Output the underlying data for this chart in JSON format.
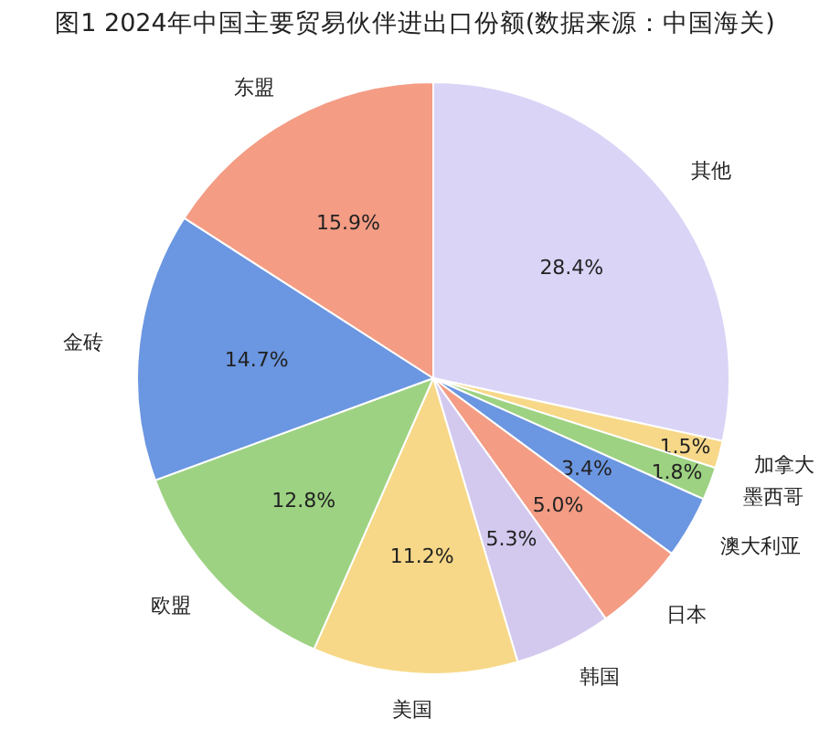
{
  "chart_data": {
    "type": "pie",
    "title": "图1 2024年中国主要贸易伙伴进出口份额(数据来源：中国海关)",
    "categories": [
      "其他",
      "加拿大",
      "墨西哥",
      "澳大利亚",
      "日本",
      "韩国",
      "美国",
      "欧盟",
      "金砖",
      "东盟"
    ],
    "values": [
      28.4,
      1.5,
      1.8,
      3.4,
      5.0,
      5.3,
      11.2,
      12.8,
      14.7,
      15.9
    ],
    "value_labels": [
      "28.4%",
      "1.5%",
      "1.8%",
      "3.4%",
      "5.0%",
      "5.3%",
      "11.2%",
      "12.8%",
      "14.7%",
      "15.9%"
    ],
    "colors": [
      "#dad4f6",
      "#f7d888",
      "#9dd282",
      "#6b96e1",
      "#f49c84",
      "#d3c9ef",
      "#f7d888",
      "#9dd282",
      "#6b96e1",
      "#f49c84"
    ]
  }
}
